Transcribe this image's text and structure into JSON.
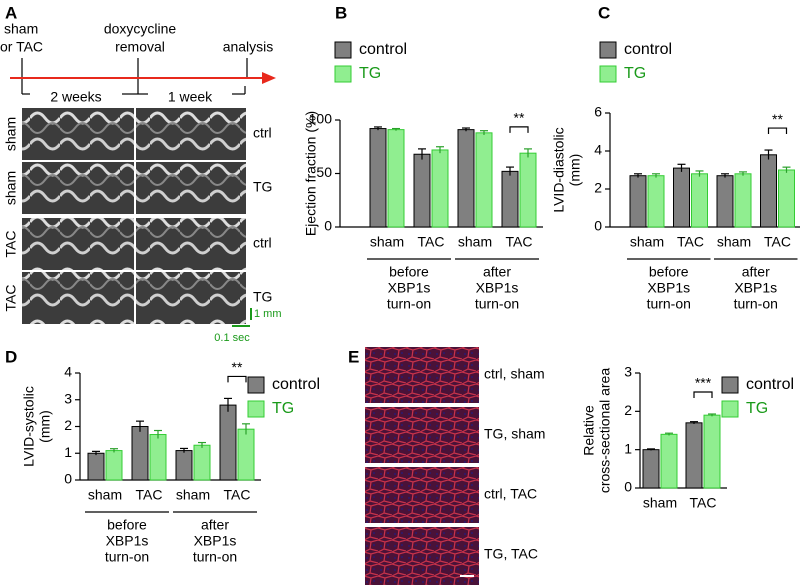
{
  "panel_labels": [
    "A",
    "B",
    "C",
    "D",
    "E"
  ],
  "timeline": {
    "events": [
      [
        "sham",
        "or TAC"
      ],
      [
        "doxycycline",
        "removal"
      ],
      [
        "analysis"
      ]
    ],
    "periods": [
      "2 weeks",
      "1 week"
    ]
  },
  "echo": {
    "row_labels": [
      "sham",
      "sham",
      "TAC",
      "TAC"
    ],
    "genotype_labels": [
      "ctrl",
      "TG",
      "ctrl",
      "TG"
    ],
    "scale_y": "1 mm",
    "scale_x": "0.1 sec"
  },
  "histology": {
    "labels": [
      "ctrl, sham",
      "TG, sham",
      "ctrl, TAC",
      "TG, TAC"
    ]
  },
  "chart_data": [
    {
      "type": "bar",
      "ylabel": [
        "Ejection fraction (%)"
      ],
      "categories": [
        "sham",
        "TAC",
        "sham",
        "TAC"
      ],
      "groups": [
        [
          "before",
          "XBP1s",
          "turn-on"
        ],
        [
          "after",
          "XBP1s",
          "turn-on"
        ]
      ],
      "series": [
        {
          "name": "control",
          "color": "#808080",
          "values": [
            92,
            68,
            91,
            52
          ],
          "errors": [
            1.5,
            5,
            1.5,
            4
          ]
        },
        {
          "name": "TG",
          "color": "#90ee90",
          "values": [
            91,
            72,
            88,
            69
          ],
          "errors": [
            1,
            3,
            2,
            4
          ]
        }
      ],
      "ylim": [
        0,
        100
      ],
      "yticks": [
        0,
        50,
        100
      ],
      "significance": "**"
    },
    {
      "type": "bar",
      "ylabel": [
        "LVID-diastolic",
        "(mm)"
      ],
      "categories": [
        "sham",
        "TAC",
        "sham",
        "TAC"
      ],
      "groups": [
        [
          "before",
          "XBP1s",
          "turn-on"
        ],
        [
          "after",
          "XBP1s",
          "turn-on"
        ]
      ],
      "series": [
        {
          "name": "control",
          "color": "#808080",
          "values": [
            2.7,
            3.1,
            2.7,
            3.8
          ],
          "errors": [
            0.1,
            0.2,
            0.1,
            0.25
          ]
        },
        {
          "name": "TG",
          "color": "#90ee90",
          "values": [
            2.7,
            2.8,
            2.8,
            3.0
          ],
          "errors": [
            0.1,
            0.15,
            0.1,
            0.15
          ]
        }
      ],
      "ylim": [
        0,
        6
      ],
      "yticks": [
        0,
        2,
        4,
        6
      ],
      "significance": "**"
    },
    {
      "type": "bar",
      "ylabel": [
        "LVID-systolic",
        "(mm)"
      ],
      "categories": [
        "sham",
        "TAC",
        "sham",
        "TAC"
      ],
      "groups": [
        [
          "before",
          "XBP1s",
          "turn-on"
        ],
        [
          "after",
          "XBP1s",
          "turn-on"
        ]
      ],
      "series": [
        {
          "name": "control",
          "color": "#808080",
          "values": [
            1.0,
            2.0,
            1.1,
            2.8
          ],
          "errors": [
            0.07,
            0.2,
            0.08,
            0.25
          ]
        },
        {
          "name": "TG",
          "color": "#90ee90",
          "values": [
            1.1,
            1.7,
            1.3,
            1.9
          ],
          "errors": [
            0.07,
            0.15,
            0.1,
            0.2
          ]
        }
      ],
      "ylim": [
        0,
        4
      ],
      "yticks": [
        0,
        1,
        2,
        3,
        4
      ],
      "significance": "**"
    },
    {
      "type": "bar",
      "ylabel": [
        "Relative",
        "cross-sectional area"
      ],
      "categories": [
        "sham",
        "TAC"
      ],
      "series": [
        {
          "name": "control",
          "color": "#808080",
          "values": [
            1.0,
            1.7
          ],
          "errors": [
            0.02,
            0.03
          ]
        },
        {
          "name": "TG",
          "color": "#90ee90",
          "values": [
            1.4,
            1.9
          ],
          "errors": [
            0.03,
            0.03
          ]
        }
      ],
      "ylim": [
        0,
        3
      ],
      "yticks": [
        0,
        1,
        2,
        3
      ],
      "significance": "***"
    }
  ]
}
